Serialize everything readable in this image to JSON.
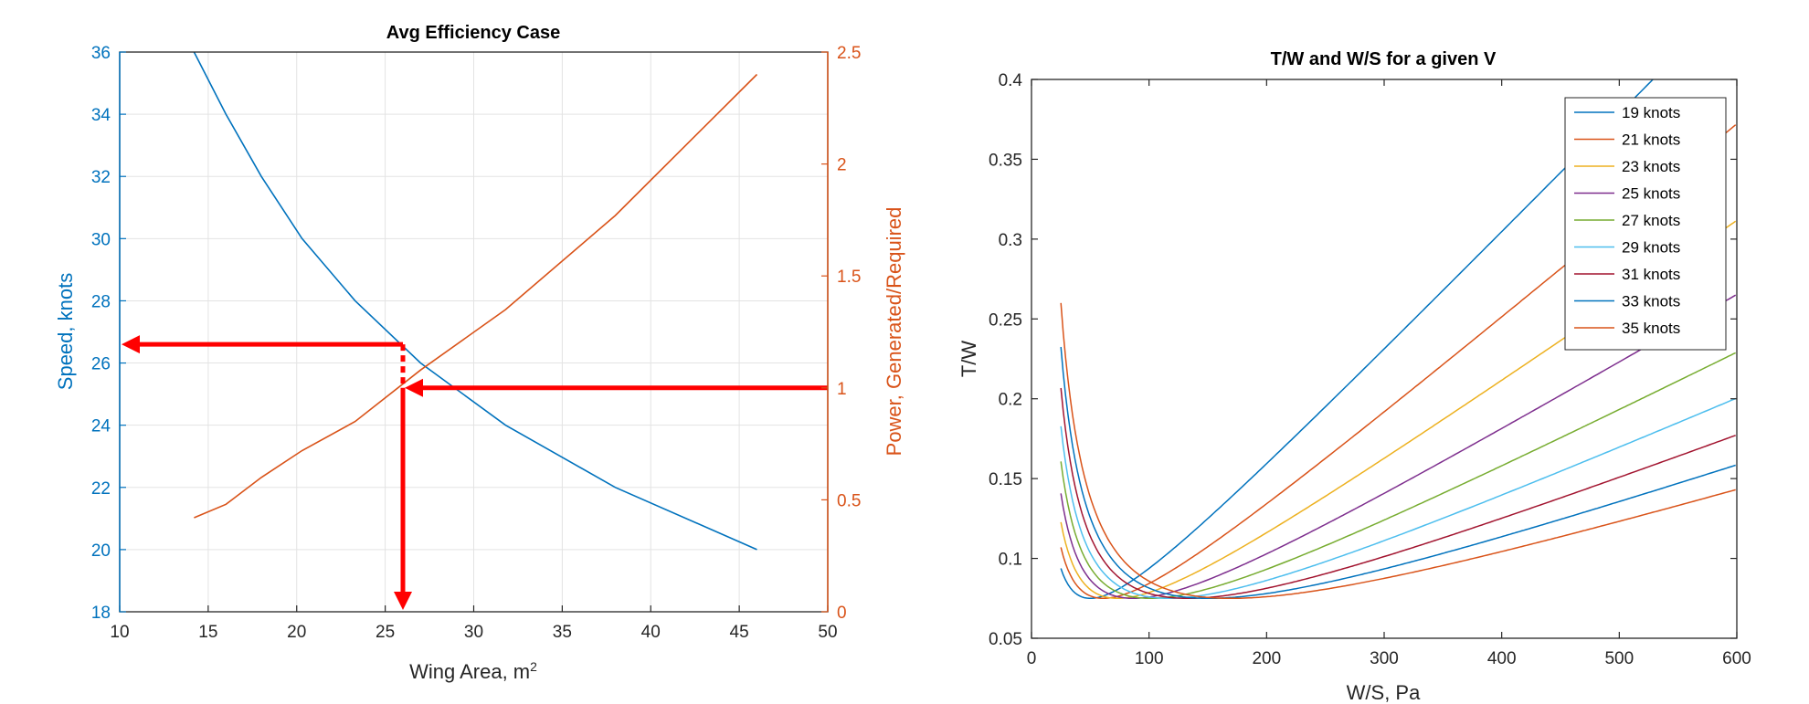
{
  "chart_data": [
    {
      "type": "line",
      "title": "Avg Efficiency Case",
      "xlabel": "Wing Area, m",
      "xlabel_superscript": "2",
      "ylabel_left": "Speed, knots",
      "ylabel_right": "Power, Generated/Required",
      "xlim": [
        10,
        50
      ],
      "ylim_left": [
        18,
        36
      ],
      "ylim_right": [
        0,
        2.5
      ],
      "xticks": [
        "10",
        "15",
        "20",
        "25",
        "30",
        "35",
        "40",
        "45",
        "50"
      ],
      "yticks_left": [
        "18",
        "20",
        "22",
        "24",
        "26",
        "28",
        "30",
        "32",
        "34",
        "36"
      ],
      "yticks_right": [
        "0",
        "0.5",
        "1",
        "1.5",
        "2",
        "2.5"
      ],
      "grid": true,
      "colors": {
        "left": "#0072BD",
        "right": "#D95319",
        "annotation": "#ff0000"
      },
      "series": [
        {
          "axis": "left",
          "x": [
            14.2,
            16,
            18,
            20.3,
            23.3,
            27,
            31.8,
            38,
            46
          ],
          "y": [
            36,
            34,
            32,
            30,
            28,
            26,
            24,
            22,
            20
          ]
        },
        {
          "axis": "right",
          "x": [
            14.2,
            16,
            18,
            20.3,
            23.3,
            27,
            31.8,
            38,
            46
          ],
          "y": [
            0.42,
            0.48,
            0.6,
            0.72,
            0.85,
            1.08,
            1.35,
            1.77,
            2.4
          ]
        }
      ],
      "annotations": {
        "intersect_x": 26,
        "speed_readout": 26.6,
        "power_target": 1
      }
    },
    {
      "type": "line",
      "title": "T/W and W/S for a given V",
      "xlabel": "W/S, Pa",
      "ylabel": "T/W",
      "xlim": [
        0,
        600
      ],
      "ylim": [
        0.05,
        0.4
      ],
      "xticks": [
        "0",
        "100",
        "200",
        "300",
        "400",
        "500",
        "600"
      ],
      "yticks": [
        "0.05",
        "0.1",
        "0.15",
        "0.2",
        "0.25",
        "0.3",
        "0.35",
        "0.4"
      ],
      "grid": false,
      "legend_position": "top-right",
      "curve_model": {
        "ws_start": 25,
        "ws_end": 600,
        "q_per_knot2": 0.1385,
        "tw_min": 0.075,
        "wave_at_ws_start": 0.036
      },
      "series": [
        {
          "name": "19 knots",
          "speed": 19,
          "color": "#0072BD"
        },
        {
          "name": "21 knots",
          "speed": 21,
          "color": "#D95319"
        },
        {
          "name": "23 knots",
          "speed": 23,
          "color": "#EDB120"
        },
        {
          "name": "25 knots",
          "speed": 25,
          "color": "#7E2F8E"
        },
        {
          "name": "27 knots",
          "speed": 27,
          "color": "#77AC30"
        },
        {
          "name": "29 knots",
          "speed": 29,
          "color": "#4DBEEE"
        },
        {
          "name": "31 knots",
          "speed": 31,
          "color": "#A2142F"
        },
        {
          "name": "33 knots",
          "speed": 33,
          "color": "#0072BD"
        },
        {
          "name": "35 knots",
          "speed": 35,
          "color": "#D95319"
        }
      ]
    }
  ]
}
